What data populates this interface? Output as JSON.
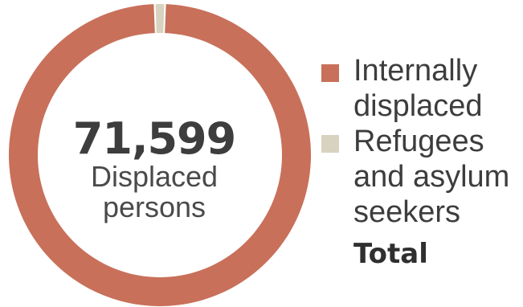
{
  "chart_data": {
    "type": "pie",
    "series": [
      {
        "name": "Internally displaced",
        "value": 70812,
        "color": "#c8705a"
      },
      {
        "name": "Refugees and asylum seekers",
        "value": 787,
        "color": "#d8d2c0"
      }
    ],
    "total_value": "71,599",
    "total_caption_line1": "Displaced",
    "total_caption_line2": "persons",
    "total_label": "Total"
  }
}
